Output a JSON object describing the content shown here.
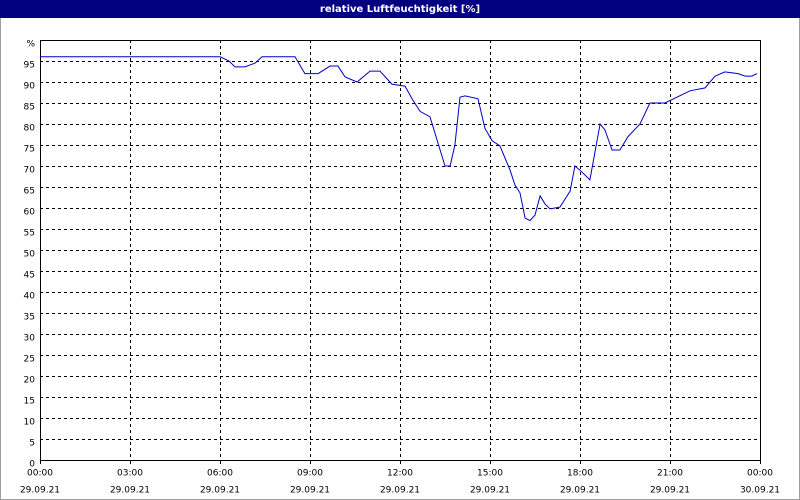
{
  "chart_data": {
    "type": "line",
    "title": "relative Luftfeuchtigkeit [%]",
    "x": [
      0,
      6,
      6.3,
      6.5,
      6.83,
      7.17,
      7.4,
      8.5,
      8.83,
      9.27,
      9.67,
      9.93,
      10.17,
      10.57,
      11,
      11.33,
      11.73,
      12.17,
      12.4,
      12.67,
      13,
      13.5,
      13.67,
      13.83,
      14,
      14.17,
      14.6,
      14.83,
      15.07,
      15.33,
      15.67,
      15.83,
      16,
      16.17,
      16.33,
      16.5,
      16.67,
      16.83,
      17,
      17.33,
      17.67,
      17.83,
      18,
      18.33,
      18.67,
      18.83,
      19.07,
      19.33,
      19.6,
      20,
      20.33,
      20.83,
      21.67,
      22.17,
      22.5,
      22.83,
      23.27,
      23.5,
      23.73,
      23.9
    ],
    "series": [
      {
        "color": "#0000c8",
        "values": [
          96,
          96,
          95,
          93.6,
          93.6,
          94.5,
          96,
          96,
          92,
          92,
          93.8,
          93.8,
          91.2,
          90,
          92.6,
          92.6,
          89.5,
          89,
          86,
          83,
          81.7,
          70,
          70,
          75,
          86.4,
          86.7,
          86,
          79,
          76,
          74.8,
          69,
          65.5,
          63.6,
          57.6,
          57,
          58.3,
          62.9,
          61,
          59.8,
          60.2,
          64,
          70,
          69,
          66.7,
          80,
          78.6,
          73.8,
          73.8,
          77,
          80,
          85,
          85,
          87.9,
          88.6,
          91.4,
          92.4,
          92,
          91.4,
          91.4,
          92
        ]
      }
    ],
    "xlim": [
      0,
      24
    ],
    "xticks": [
      {
        "value": 0,
        "label": "00:00"
      },
      {
        "value": 3,
        "label": "03:00"
      },
      {
        "value": 6,
        "label": "06:00"
      },
      {
        "value": 9,
        "label": "09:00"
      },
      {
        "value": 12,
        "label": "12:00"
      },
      {
        "value": 15,
        "label": "15:00"
      },
      {
        "value": 18,
        "label": "18:00"
      },
      {
        "value": 21,
        "label": "21:00"
      },
      {
        "value": 24,
        "label": "00:00"
      }
    ],
    "xtick_dates": [
      "29.09.21",
      "29.09.21",
      "29.09.21",
      "29.09.21",
      "29.09.21",
      "29.09.21",
      "29.09.21",
      "29.09.21",
      "30.09.21"
    ],
    "ylim": [
      0,
      100
    ],
    "yticks": [
      0,
      5,
      10,
      15,
      20,
      25,
      30,
      35,
      40,
      45,
      50,
      55,
      60,
      65,
      70,
      75,
      80,
      85,
      90,
      95,
      {
        "value": 100,
        "label": "%"
      }
    ],
    "grid": true
  }
}
